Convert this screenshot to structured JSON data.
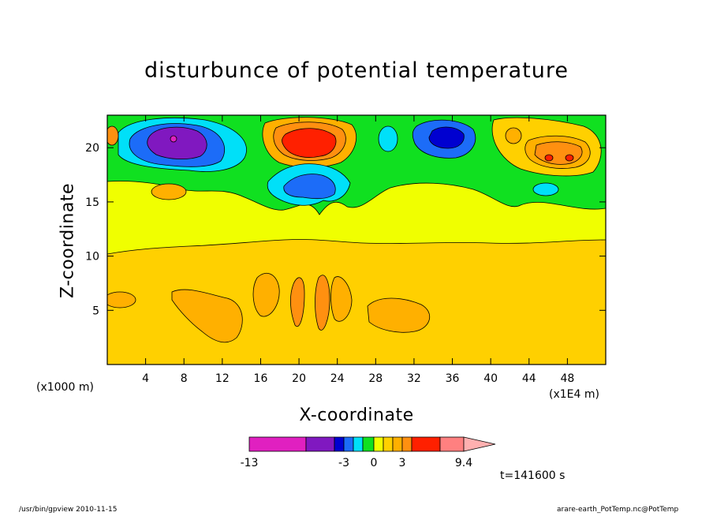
{
  "chart_data": {
    "type": "heatmap",
    "title": "disturbunce of potential temperature",
    "xlabel": "X-coordinate",
    "ylabel": "Z-coordinate",
    "x_unit_note": "(x1000 m)",
    "x_scale_note": "(x1E4 m)",
    "xlim": [
      0,
      52
    ],
    "ylim": [
      0,
      23
    ],
    "x_ticks": [
      4,
      8,
      12,
      16,
      20,
      24,
      28,
      32,
      36,
      40,
      44,
      48
    ],
    "y_ticks": [
      5,
      10,
      15,
      20
    ],
    "colorbar": {
      "levels": [
        -13,
        -3,
        0,
        3,
        9.4
      ],
      "labels": [
        "-13",
        "-3",
        "0",
        "3",
        "9.4"
      ],
      "colors": [
        "#e020c0",
        "#8018c0",
        "#0000d0",
        "#1c6cf8",
        "#00e0f8",
        "#10e020",
        "#f0ff00",
        "#ffd000",
        "#ffb000",
        "#ff9010",
        "#ff2000",
        "#ff8080",
        "#ffb0b0"
      ]
    },
    "features": [
      {
        "kind": "cold-maximum",
        "x": 7,
        "z": 20.5,
        "value": -13
      },
      {
        "kind": "warm-maximum",
        "x": 21,
        "z": 20.5,
        "value": 9.4
      },
      {
        "kind": "cold-cell",
        "x": 35,
        "z": 20.5,
        "value": -3
      },
      {
        "kind": "warm-cell",
        "x": 46.5,
        "z": 19.5,
        "value": 5
      },
      {
        "kind": "warm-layer",
        "z_range": [
          0,
          10.5
        ],
        "value": 1
      },
      {
        "kind": "near-zero-layer",
        "z_range": [
          10.5,
          17
        ],
        "value": 0.3
      }
    ]
  },
  "annotation": {
    "time": "t=141600 s"
  },
  "footer": {
    "left": "/usr/bin/gpview 2010-11-15",
    "right": "arare-earth_PotTemp.nc@PotTemp"
  }
}
